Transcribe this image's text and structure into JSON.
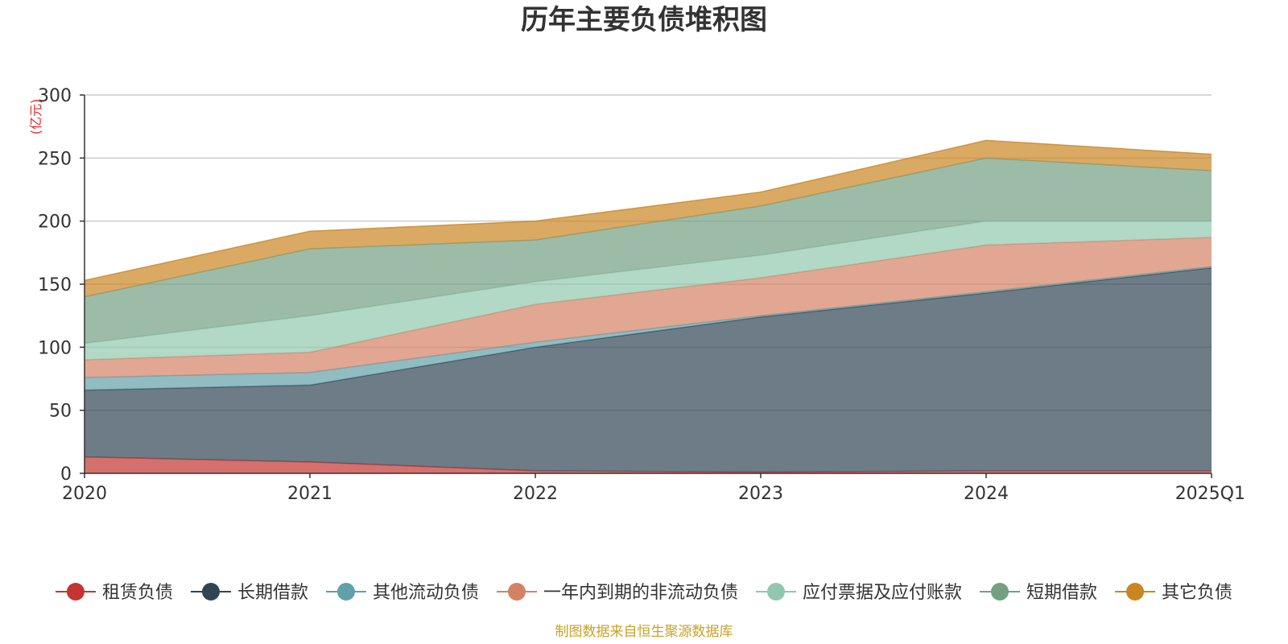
{
  "chart_data": {
    "type": "area",
    "stacked": true,
    "title": "历年主要负债堆积图",
    "unit_label": "(亿元)",
    "categories": [
      "2020",
      "2021",
      "2022",
      "2023",
      "2024",
      "2025Q1"
    ],
    "y_ticks": [
      "0",
      "50",
      "100",
      "150",
      "200",
      "250",
      "300"
    ],
    "ylim": [
      0,
      300
    ],
    "grid": true,
    "legend_position": "bottom",
    "series": [
      {
        "name": "租赁负债",
        "color": "#c23531",
        "values": [
          13,
          9,
          2,
          1,
          2,
          2
        ]
      },
      {
        "name": "长期借款",
        "color": "#2f4554",
        "values": [
          53,
          61,
          98,
          123,
          141,
          161
        ]
      },
      {
        "name": "其他流动负债",
        "color": "#61a0a8",
        "values": [
          10,
          10,
          4,
          1,
          1,
          1
        ]
      },
      {
        "name": "一年内到期的非流动负债",
        "color": "#d48265",
        "values": [
          14,
          16,
          30,
          30,
          37,
          23
        ]
      },
      {
        "name": "应付票据及应付账款",
        "color": "#91c7ae",
        "values": [
          13,
          29,
          18,
          18,
          19,
          13
        ]
      },
      {
        "name": "短期借款",
        "color": "#749f83",
        "values": [
          37,
          53,
          33,
          39,
          50,
          40
        ]
      },
      {
        "name": "其它负债",
        "color": "#ca8622",
        "values": [
          13,
          14,
          15,
          11,
          14,
          13
        ]
      }
    ],
    "source_note": "制图数据来自恒生聚源数据库"
  }
}
